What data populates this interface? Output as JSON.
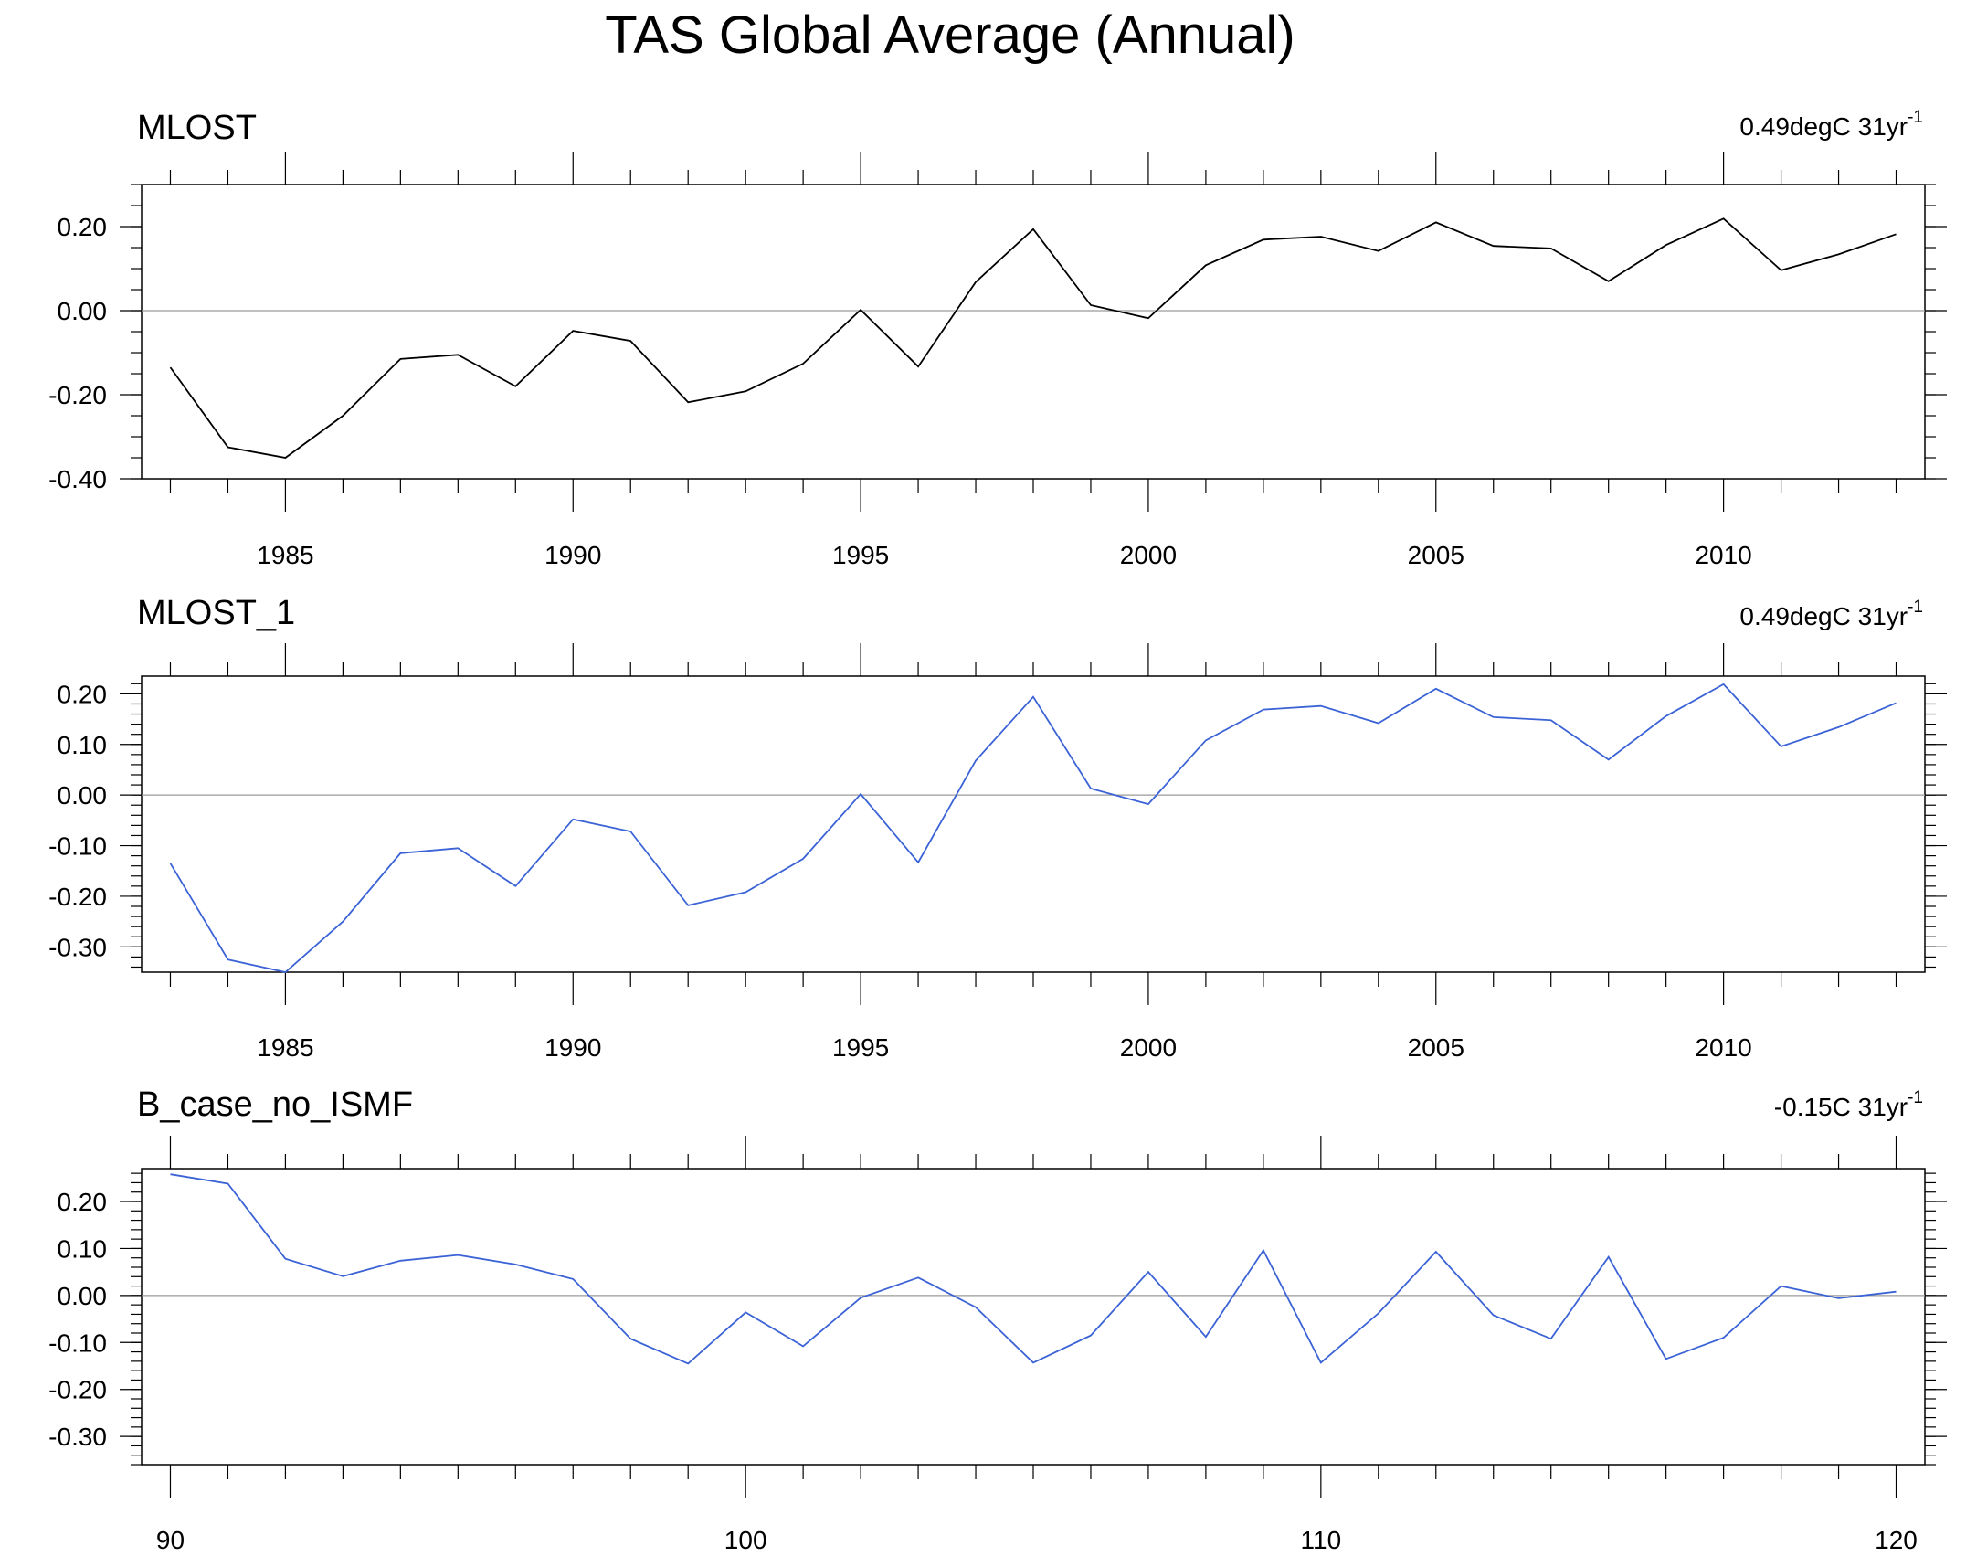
{
  "title": "TAS Global Average (Annual)",
  "chart_data": [
    {
      "type": "line",
      "title": "MLOST",
      "trend_text": "0.49degC 31yr",
      "trend_exp": "-1",
      "line_color": "#000000",
      "xlim": [
        1982.5,
        2013.5
      ],
      "ylim": [
        -0.4,
        0.3
      ],
      "x_ticks": [
        1985,
        1990,
        1995,
        2000,
        2005,
        2010
      ],
      "y_ticks": [
        -0.4,
        -0.2,
        0.0,
        0.2
      ],
      "y_tick_labels": [
        "-0.40",
        "-0.20",
        "0.00",
        "0.20"
      ],
      "y_minor_step": 0.05,
      "x": [
        1983,
        1984,
        1985,
        1986,
        1987,
        1988,
        1989,
        1990,
        1991,
        1992,
        1993,
        1994,
        1995,
        1996,
        1997,
        1998,
        1999,
        2000,
        2001,
        2002,
        2003,
        2004,
        2005,
        2006,
        2007,
        2008,
        2009,
        2010,
        2011,
        2012,
        2013
      ],
      "values": [
        -0.135,
        -0.325,
        -0.35,
        -0.25,
        -0.115,
        -0.105,
        -0.18,
        -0.048,
        -0.072,
        -0.218,
        -0.192,
        -0.126,
        0.002,
        -0.133,
        0.068,
        0.194,
        0.013,
        -0.018,
        0.108,
        0.169,
        0.176,
        0.142,
        0.21,
        0.154,
        0.148,
        0.07,
        0.156,
        0.219,
        0.096,
        0.134,
        0.182
      ]
    },
    {
      "type": "line",
      "title": "MLOST_1",
      "trend_text": "0.49degC 31yr",
      "trend_exp": "-1",
      "line_color": "#3b63d6",
      "xlim": [
        1982.5,
        2013.5
      ],
      "ylim": [
        -0.35,
        0.235
      ],
      "x_ticks": [
        1985,
        1990,
        1995,
        2000,
        2005,
        2010
      ],
      "y_ticks": [
        -0.3,
        -0.2,
        -0.1,
        0.0,
        0.1,
        0.2
      ],
      "y_tick_labels": [
        "-0.30",
        "-0.20",
        "-0.10",
        "0.00",
        "0.10",
        "0.20"
      ],
      "y_minor_step": 0.02,
      "x": [
        1983,
        1984,
        1985,
        1986,
        1987,
        1988,
        1989,
        1990,
        1991,
        1992,
        1993,
        1994,
        1995,
        1996,
        1997,
        1998,
        1999,
        2000,
        2001,
        2002,
        2003,
        2004,
        2005,
        2006,
        2007,
        2008,
        2009,
        2010,
        2011,
        2012,
        2013
      ],
      "values": [
        -0.135,
        -0.325,
        -0.35,
        -0.25,
        -0.115,
        -0.105,
        -0.18,
        -0.048,
        -0.072,
        -0.218,
        -0.192,
        -0.126,
        0.002,
        -0.133,
        0.068,
        0.194,
        0.013,
        -0.018,
        0.108,
        0.169,
        0.176,
        0.142,
        0.21,
        0.154,
        0.148,
        0.07,
        0.156,
        0.219,
        0.096,
        0.134,
        0.182
      ]
    },
    {
      "type": "line",
      "title": "B_case_no_ISMF",
      "trend_text": "-0.15C 31yr",
      "trend_exp": "-1",
      "line_color": "#3b63d6",
      "xlim": [
        89.5,
        120.5
      ],
      "ylim": [
        -0.36,
        0.27
      ],
      "x_ticks": [
        90,
        100,
        110,
        120
      ],
      "y_ticks": [
        -0.3,
        -0.2,
        -0.1,
        0.0,
        0.1,
        0.2
      ],
      "y_tick_labels": [
        "-0.30",
        "-0.20",
        "-0.10",
        "0.00",
        "0.10",
        "0.20"
      ],
      "y_minor_step": 0.02,
      "x": [
        90,
        91,
        92,
        93,
        94,
        95,
        96,
        97,
        98,
        99,
        100,
        101,
        102,
        103,
        104,
        105,
        106,
        107,
        108,
        109,
        110,
        111,
        112,
        113,
        114,
        115,
        116,
        117,
        118,
        119,
        120
      ],
      "values": [
        0.258,
        0.238,
        0.078,
        0.041,
        0.074,
        0.086,
        0.066,
        0.035,
        -0.092,
        -0.145,
        -0.036,
        -0.108,
        -0.005,
        0.038,
        -0.025,
        -0.143,
        -0.085,
        0.05,
        -0.088,
        0.096,
        -0.143,
        -0.038,
        0.093,
        -0.042,
        -0.092,
        0.082,
        -0.135,
        -0.09,
        0.02,
        -0.006,
        0.008
      ]
    }
  ]
}
